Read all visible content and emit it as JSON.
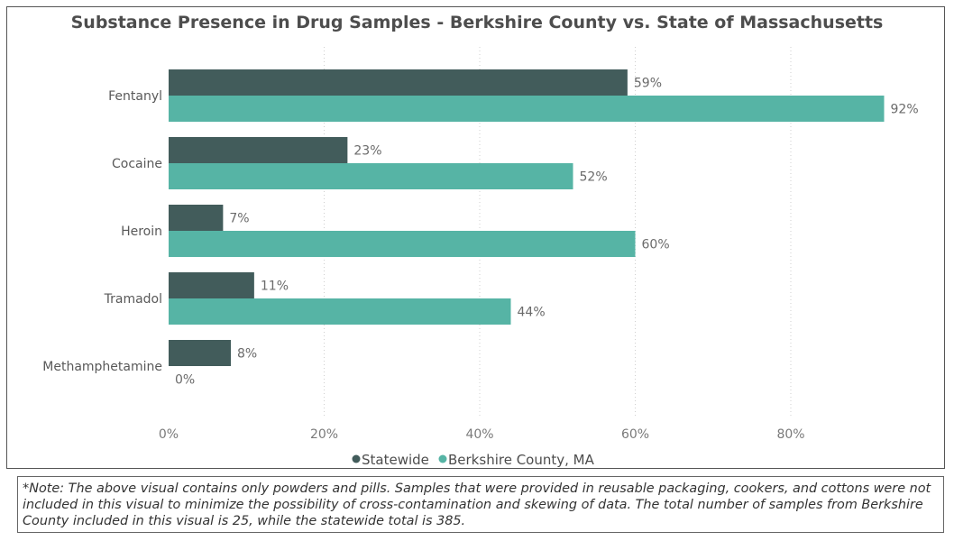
{
  "title": "Substance Presence in Drug Samples - Berkshire County vs. State of Massachusetts",
  "note": "*Note: The above visual contains only powders and pills. Samples that were provided in reusable packaging, cookers, and cottons were not included in this visual to minimize the possibility of cross-contamination and skewing of data. The total number of samples from Berkshire County included in this visual is 25, while the statewide total is 385.",
  "chart_data": {
    "type": "bar",
    "orientation": "horizontal",
    "title": "Substance Presence in Drug Samples - Berkshire County vs. State of Massachusetts",
    "categories": [
      "Fentanyl",
      "Cocaine",
      "Heroin",
      "Tramadol",
      "Methamphetamine"
    ],
    "series": [
      {
        "name": "Statewide",
        "color": "#425c5b",
        "values": [
          59,
          23,
          7,
          11,
          8
        ]
      },
      {
        "name": "Berkshire County, MA",
        "color": "#56b4a5",
        "values": [
          92,
          52,
          60,
          44,
          0
        ]
      }
    ],
    "value_labels": [
      [
        "59%",
        "23%",
        "7%",
        "11%",
        "8%"
      ],
      [
        "92%",
        "52%",
        "60%",
        "44%",
        "0%"
      ]
    ],
    "xlim": [
      0,
      100
    ],
    "x_ticks": [
      0,
      20,
      40,
      60,
      80
    ],
    "x_tick_labels": [
      "0%",
      "20%",
      "40%",
      "60%",
      "80%"
    ],
    "grid": true,
    "legend_position": "bottom"
  }
}
